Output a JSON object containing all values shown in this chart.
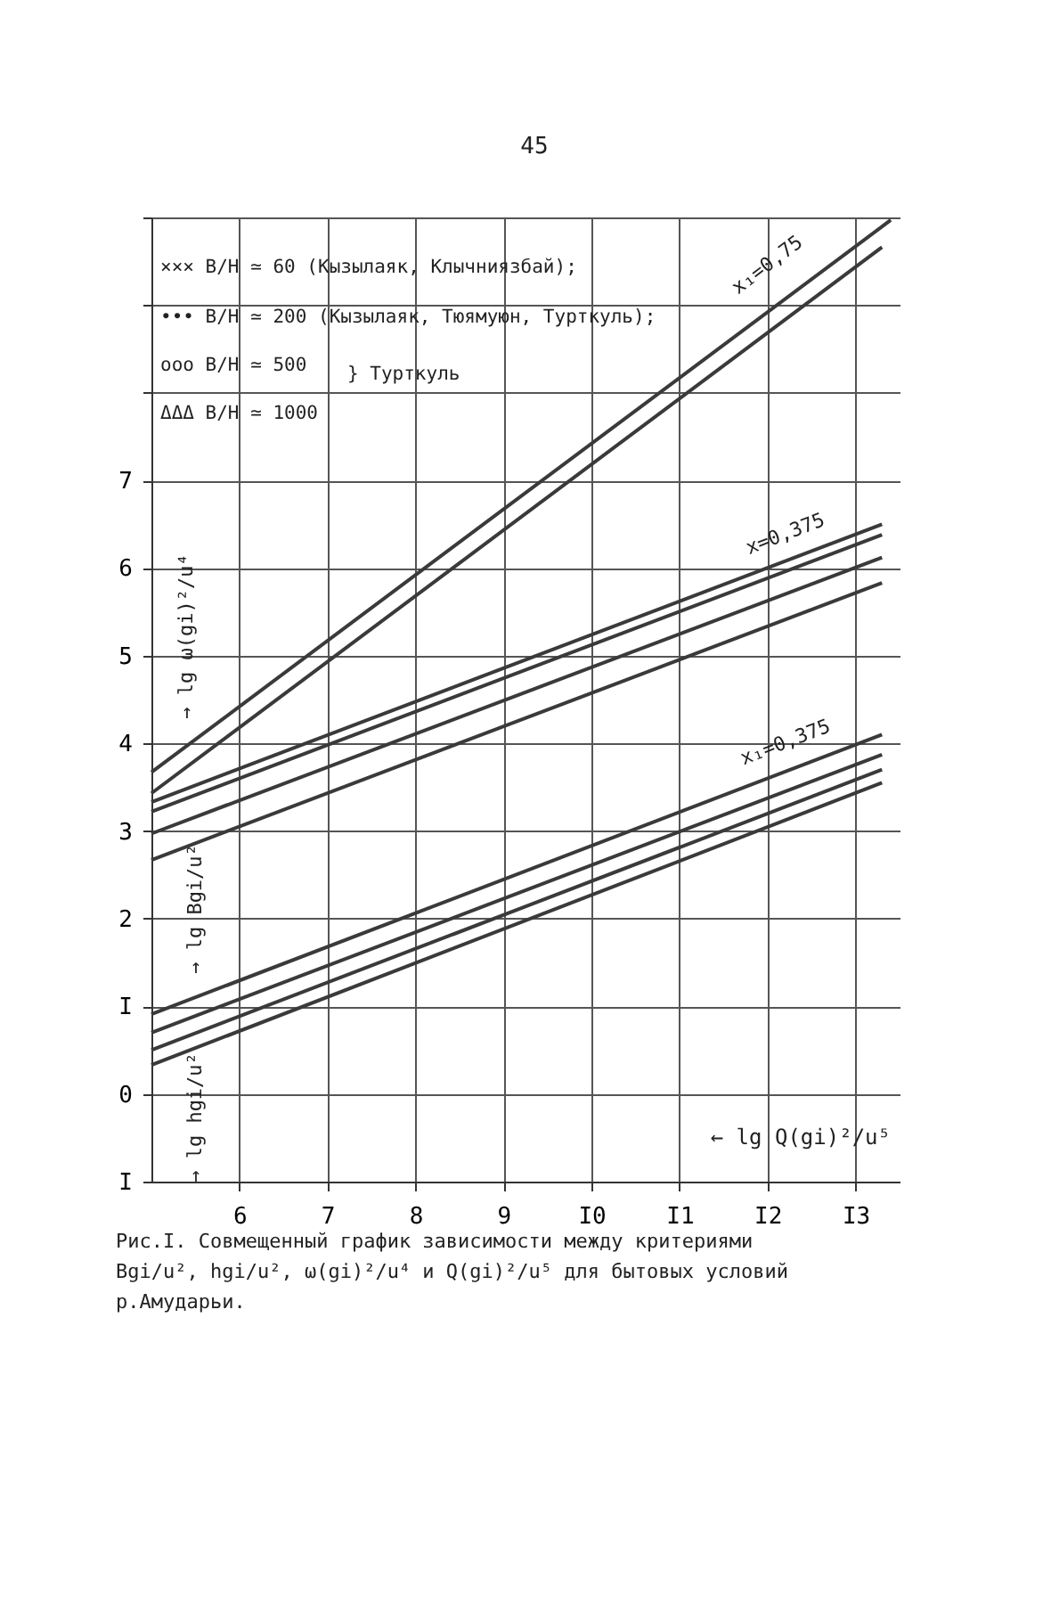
{
  "chart_data": {
    "type": "line",
    "xlabel": "← lg Q(gi)²/u⁵",
    "xlim": [
      5,
      13.5
    ],
    "xticks": [
      6,
      7,
      8,
      9,
      {
        "value": 10,
        "label": "I0"
      },
      {
        "value": 11,
        "label": "I1"
      },
      {
        "value": 12,
        "label": "I2"
      },
      {
        "value": 13,
        "label": "I3"
      }
    ],
    "ylim": [
      -1,
      10
    ],
    "yticks": [
      {
        "value": -1,
        "label": "I"
      },
      0,
      {
        "value": 1,
        "label": "I"
      },
      2,
      3,
      4,
      5,
      6,
      7,
      {
        "value": 8,
        "label": null
      },
      {
        "value": 9,
        "label": null
      },
      {
        "value": 10,
        "label": null
      }
    ],
    "grid": true,
    "marker": "none",
    "line_style": "solid",
    "series": [
      {
        "color": "#3a3a3a",
        "x": [
          5,
          13.4
        ],
        "values": [
          3.67,
          9.97
        ]
      },
      {
        "color": "#3a3a3a",
        "x": [
          5,
          13.3
        ],
        "values": [
          3.43,
          9.66
        ]
      },
      {
        "color": "#3a3a3a",
        "x": [
          5,
          13.3
        ],
        "values": [
          3.33,
          6.5
        ]
      },
      {
        "color": "#3a3a3a",
        "x": [
          5,
          13.3
        ],
        "values": [
          3.22,
          6.38
        ]
      },
      {
        "color": "#3a3a3a",
        "x": [
          5,
          13.3
        ],
        "values": [
          2.97,
          6.12
        ]
      },
      {
        "color": "#3a3a3a",
        "x": [
          5,
          13.3
        ],
        "values": [
          2.67,
          5.83
        ]
      },
      {
        "color": "#3a3a3a",
        "x": [
          5,
          13.3
        ],
        "values": [
          0.91,
          4.1
        ]
      },
      {
        "color": "#3a3a3a",
        "x": [
          5,
          13.3
        ],
        "values": [
          0.7,
          3.87
        ]
      },
      {
        "color": "#3a3a3a",
        "x": [
          5,
          13.3
        ],
        "values": [
          0.5,
          3.7
        ]
      },
      {
        "color": "#3a3a3a",
        "x": [
          5,
          13.3
        ],
        "values": [
          0.33,
          3.55
        ]
      }
    ],
    "annotations": [
      "45",
      "××× B/H ≃ 60 (Кызылаяк, Клычниязбай);",
      "••• B/H ≃ 200 (Кызылаяк, Тюямуюн, Турткуль);",
      "ooo B/H ≃ 500",
      "ΔΔΔ B/H ≃ 1000",
      "} Турткуль",
      "→ lg ω(gi)²/u⁴",
      "→ lg Bgi/u²",
      "→ lg hgi/u²",
      "Рис.I. Совмещенный график зависимости между критериями Bgi/u², hgi/u², ω(gi)²/u⁴ и Q(gi)²/u⁵ для бытовых условий р.Амударьи.",
      "x₁=0,75",
      "x=0,375",
      "x₁=0,375"
    ]
  }
}
